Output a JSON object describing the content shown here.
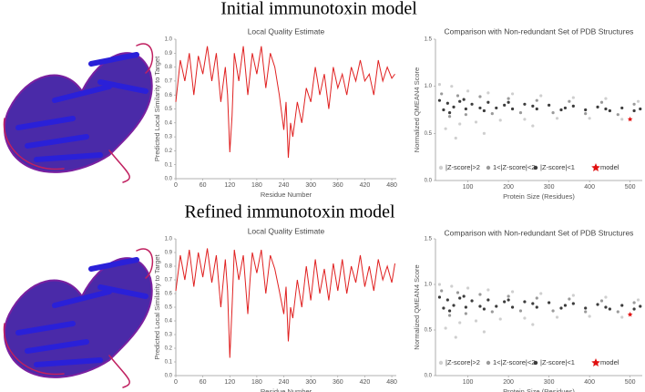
{
  "rows": [
    {
      "heading": "Initial immunotoxin model"
    },
    {
      "heading": "Refined immunotoxin model"
    }
  ],
  "chart_data": [
    {
      "type": "line",
      "title": "Local Quality Estimate",
      "x_label": "Residue Number",
      "y_label": "Predicted Local Similarity to Target",
      "color": "#e02020",
      "x": [
        0,
        10,
        20,
        30,
        40,
        50,
        60,
        70,
        80,
        90,
        100,
        110,
        115,
        120,
        125,
        130,
        140,
        150,
        160,
        170,
        180,
        190,
        200,
        210,
        220,
        230,
        240,
        245,
        250,
        255,
        260,
        270,
        280,
        290,
        300,
        310,
        320,
        330,
        340,
        350,
        360,
        370,
        380,
        390,
        400,
        410,
        420,
        430,
        440,
        450,
        460,
        470,
        480,
        487
      ],
      "values": [
        0.55,
        0.85,
        0.7,
        0.9,
        0.6,
        0.88,
        0.75,
        0.95,
        0.7,
        0.9,
        0.55,
        0.8,
        0.6,
        0.19,
        0.45,
        0.9,
        0.7,
        0.95,
        0.6,
        0.9,
        0.75,
        0.95,
        0.65,
        0.9,
        0.8,
        0.6,
        0.35,
        0.55,
        0.15,
        0.4,
        0.3,
        0.55,
        0.4,
        0.65,
        0.55,
        0.8,
        0.6,
        0.75,
        0.5,
        0.8,
        0.65,
        0.75,
        0.6,
        0.8,
        0.7,
        0.85,
        0.7,
        0.75,
        0.6,
        0.85,
        0.7,
        0.8,
        0.72,
        0.75
      ],
      "xlim": [
        0,
        490
      ],
      "ylim": [
        0,
        1
      ],
      "xticks": [
        0,
        60,
        120,
        180,
        240,
        300,
        360,
        420,
        480
      ],
      "yticks": [
        {
          "value": 0,
          "label": "0.0"
        },
        0.1,
        0.2,
        0.3,
        0.4,
        0.5,
        0.6,
        0.7,
        0.8,
        0.9,
        {
          "value": 1,
          "label": "1.0"
        }
      ]
    },
    {
      "type": "scatter",
      "title": "Comparison with Non-redundant Set of PDB Structures",
      "x_label": "Protein Size (Residues)",
      "y_label": "Normalized QMEAN4 Score",
      "series": [
        {
          "name": "|Z-score|>2",
          "color": "#cfcfcf",
          "marker": "circle",
          "x": [
            30,
            45,
            60,
            80,
            100,
            120,
            150,
            180,
            210,
            240,
            280,
            320,
            360,
            400,
            440,
            480,
            520,
            70,
            140,
            260
          ],
          "values": [
            1.02,
            0.55,
            1.0,
            0.6,
            0.95,
            0.62,
            0.93,
            0.64,
            0.92,
            0.65,
            0.9,
            0.66,
            0.88,
            0.66,
            0.87,
            0.65,
            0.84,
            0.45,
            0.5,
            0.58
          ]
        },
        {
          "name": "1<|Z-score|<2",
          "color": "#9a9a9a",
          "marker": "circle",
          "x": [
            35,
            55,
            75,
            95,
            130,
            160,
            200,
            230,
            270,
            310,
            350,
            390,
            430,
            470,
            510
          ],
          "values": [
            0.92,
            0.68,
            0.9,
            0.7,
            0.89,
            0.71,
            0.87,
            0.72,
            0.85,
            0.72,
            0.84,
            0.71,
            0.83,
            0.7,
            0.81
          ]
        },
        {
          "name": "|Z-score|<1",
          "color": "#3c3c3c",
          "marker": "circle",
          "x": [
            30,
            40,
            50,
            65,
            80,
            95,
            110,
            130,
            150,
            170,
            190,
            210,
            240,
            270,
            300,
            330,
            360,
            390,
            420,
            450,
            480,
            510,
            525,
            55,
            90,
            140,
            200,
            260,
            340,
            440
          ],
          "values": [
            0.85,
            0.75,
            0.82,
            0.78,
            0.84,
            0.76,
            0.81,
            0.77,
            0.83,
            0.77,
            0.8,
            0.76,
            0.81,
            0.76,
            0.8,
            0.75,
            0.79,
            0.75,
            0.78,
            0.74,
            0.77,
            0.74,
            0.76,
            0.72,
            0.86,
            0.74,
            0.83,
            0.79,
            0.77,
            0.76
          ]
        },
        {
          "name": "model",
          "color": "#e01010",
          "marker": "star",
          "x": [
            500
          ],
          "values": [
            0.65
          ]
        }
      ],
      "xlim": [
        20,
        530
      ],
      "ylim": [
        0,
        1.5
      ],
      "xticks": [
        100,
        200,
        300,
        400,
        500
      ],
      "yticks": [
        {
          "value": 0,
          "label": "0.0"
        },
        0.5,
        {
          "value": 1,
          "label": "1.0"
        },
        1.5
      ]
    },
    {
      "type": "line",
      "title": "Local Quality Estimate",
      "x_label": "Residue Number",
      "y_label": "Predicted Local Similarity to Target",
      "color": "#e02020",
      "x": [
        0,
        10,
        20,
        30,
        40,
        50,
        60,
        70,
        80,
        90,
        100,
        110,
        115,
        120,
        125,
        130,
        140,
        150,
        160,
        165,
        170,
        180,
        190,
        200,
        210,
        220,
        230,
        240,
        245,
        250,
        255,
        260,
        270,
        280,
        290,
        300,
        310,
        320,
        330,
        340,
        350,
        360,
        370,
        380,
        390,
        400,
        410,
        420,
        430,
        440,
        450,
        460,
        470,
        480,
        487
      ],
      "values": [
        0.62,
        0.88,
        0.7,
        0.92,
        0.65,
        0.9,
        0.72,
        0.93,
        0.68,
        0.88,
        0.5,
        0.85,
        0.62,
        0.13,
        0.5,
        0.92,
        0.7,
        0.88,
        0.45,
        0.7,
        0.9,
        0.75,
        0.92,
        0.6,
        0.88,
        0.78,
        0.62,
        0.45,
        0.65,
        0.25,
        0.5,
        0.42,
        0.7,
        0.5,
        0.8,
        0.55,
        0.85,
        0.6,
        0.78,
        0.55,
        0.82,
        0.62,
        0.85,
        0.6,
        0.8,
        0.68,
        0.88,
        0.65,
        0.8,
        0.62,
        0.85,
        0.7,
        0.8,
        0.68,
        0.82
      ],
      "xlim": [
        0,
        490
      ],
      "ylim": [
        0,
        1
      ],
      "xticks": [
        0,
        60,
        120,
        180,
        240,
        300,
        360,
        420,
        480
      ],
      "yticks": [
        {
          "value": 0,
          "label": "0.0"
        },
        0.1,
        0.2,
        0.3,
        0.4,
        0.5,
        0.6,
        0.7,
        0.8,
        0.9,
        {
          "value": 1,
          "label": "1.0"
        }
      ]
    },
    {
      "type": "scatter",
      "title": "Comparison with Non-redundant Set of PDB Structures",
      "x_label": "Protein Size (Residues)",
      "y_label": "Normalized QMEAN4 Score",
      "series": [
        {
          "name": "|Z-score|>2",
          "color": "#cfcfcf",
          "marker": "circle",
          "x": [
            30,
            45,
            60,
            80,
            100,
            120,
            150,
            180,
            210,
            240,
            280,
            320,
            360,
            400,
            440,
            480,
            520,
            70,
            140,
            260
          ],
          "values": [
            1.0,
            0.52,
            0.98,
            0.58,
            0.96,
            0.6,
            0.94,
            0.62,
            0.92,
            0.63,
            0.9,
            0.64,
            0.88,
            0.65,
            0.86,
            0.64,
            0.83,
            0.42,
            0.48,
            0.56
          ]
        },
        {
          "name": "1<|Z-score|<2",
          "color": "#9a9a9a",
          "marker": "circle",
          "x": [
            35,
            55,
            75,
            95,
            130,
            160,
            200,
            230,
            270,
            310,
            350,
            390,
            430,
            470,
            510
          ],
          "values": [
            0.93,
            0.66,
            0.91,
            0.68,
            0.89,
            0.7,
            0.87,
            0.71,
            0.85,
            0.71,
            0.84,
            0.7,
            0.82,
            0.7,
            0.8
          ]
        },
        {
          "name": "|Z-score|<1",
          "color": "#3c3c3c",
          "marker": "circle",
          "x": [
            30,
            40,
            50,
            65,
            80,
            95,
            110,
            130,
            150,
            170,
            190,
            210,
            240,
            270,
            300,
            330,
            360,
            390,
            420,
            450,
            480,
            510,
            525,
            55,
            90,
            140,
            200,
            260,
            340,
            440
          ],
          "values": [
            0.86,
            0.74,
            0.83,
            0.77,
            0.85,
            0.75,
            0.82,
            0.76,
            0.83,
            0.76,
            0.81,
            0.75,
            0.81,
            0.75,
            0.8,
            0.74,
            0.79,
            0.74,
            0.78,
            0.73,
            0.77,
            0.73,
            0.76,
            0.71,
            0.87,
            0.73,
            0.83,
            0.79,
            0.77,
            0.75
          ]
        },
        {
          "name": "model",
          "color": "#e01010",
          "marker": "star",
          "x": [
            500
          ],
          "values": [
            0.67
          ]
        }
      ],
      "xlim": [
        20,
        530
      ],
      "ylim": [
        0,
        1.5
      ],
      "xticks": [
        100,
        200,
        300,
        400,
        500
      ],
      "yticks": [
        {
          "value": 0,
          "label": "0.0"
        },
        0.5,
        {
          "value": 1,
          "label": "1.0"
        },
        1.5
      ]
    }
  ]
}
